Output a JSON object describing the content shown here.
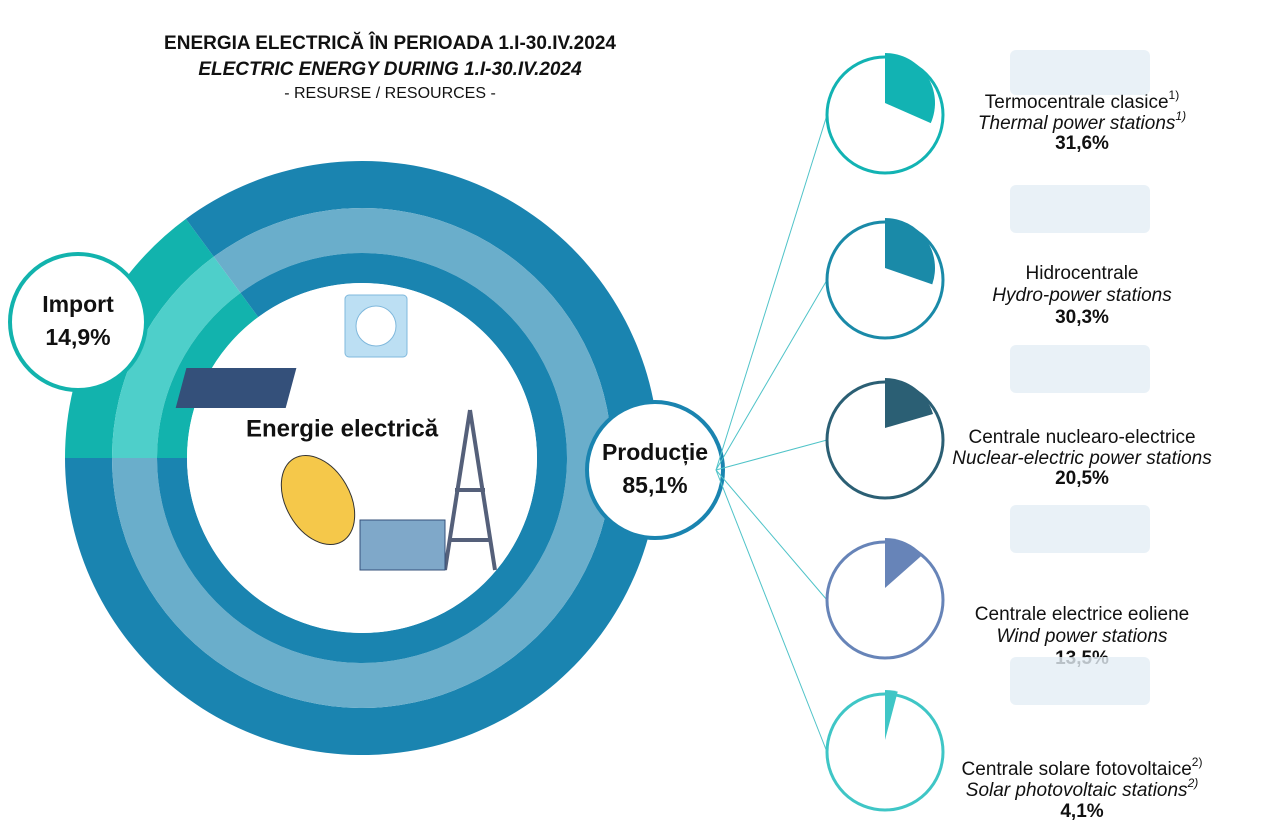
{
  "title": "ENERGIA ELECTRICĂ ÎN PERIOADA 1.I-30.IV.2024",
  "subtitle": "ELECTRIC ENERGY DURING 1.I-30.IV.2024",
  "resources": "- RESURSE / RESOURCES -",
  "chart_data": [
    {
      "type": "donut",
      "center_label": "Energie electrică",
      "categories": [
        "Import",
        "Producție"
      ],
      "values": [
        14.9,
        85.1
      ],
      "value_labels": [
        "14,9%",
        "85,1%"
      ],
      "colors": [
        "#12b3ad",
        "#1a84b0"
      ],
      "light_colors": [
        "#4ecfca",
        "#6aaecb"
      ]
    },
    {
      "type": "pie",
      "categories": [
        "Termocentrale clasice",
        "Hidrocentrale",
        "Centrale nuclearo-electrice",
        "Centrale electrice eoliene",
        "Centrale solare fotovoltaice"
      ],
      "categories_en": [
        "Thermal power stations",
        "Hydro-power stations",
        "Nuclear-electric power stations",
        "Wind power stations",
        "Solar photovoltaic stations"
      ],
      "notes": [
        "1)",
        null,
        null,
        null,
        "2)"
      ],
      "values": [
        31.6,
        30.3,
        20.5,
        13.5,
        4.1
      ],
      "value_labels": [
        "31,6%",
        "30,3%",
        "20,5%",
        "13,5%",
        "4,1%"
      ],
      "colors": [
        "#12b3b3",
        "#1a8aa8",
        "#2b5f74",
        "#6784b8",
        "#3fc6c6"
      ]
    }
  ]
}
